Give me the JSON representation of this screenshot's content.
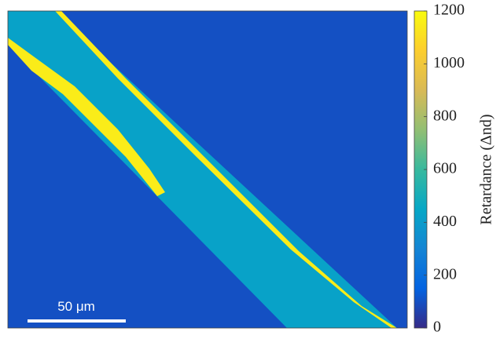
{
  "chart_data": {
    "type": "heatmap",
    "region_values": [
      100,
      430,
      1150,
      1150
    ],
    "clim": [
      0,
      1200
    ],
    "cticks": [
      0,
      200,
      400,
      600,
      800,
      1000,
      1200
    ],
    "colorbar_label": "Retardance (Δnd)",
    "scale_bar_label": "50 μm"
  }
}
